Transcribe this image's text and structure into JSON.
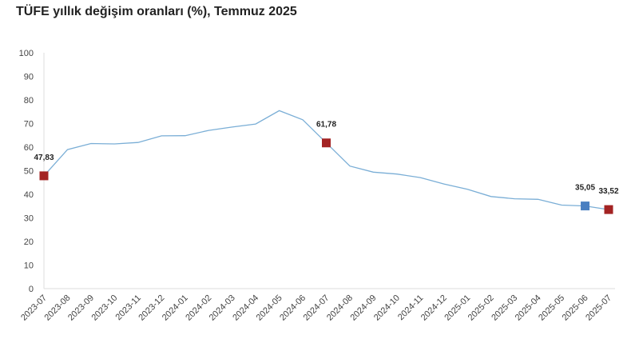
{
  "chart_data": {
    "type": "line",
    "title": "TÜFE yıllık değişim oranları (%), Temmuz 2025",
    "xlabel": "",
    "ylabel": "",
    "ylim": [
      0,
      100
    ],
    "yticks": [
      0,
      10,
      20,
      30,
      40,
      50,
      60,
      70,
      80,
      90,
      100
    ],
    "grid": false,
    "categories": [
      "2023-07",
      "2023-08",
      "2023-09",
      "2023-10",
      "2023-11",
      "2023-12",
      "2024-01",
      "2024-02",
      "2024-03",
      "2024-04",
      "2024-05",
      "2024-06",
      "2024-07",
      "2024-08",
      "2024-09",
      "2024-10",
      "2024-11",
      "2024-12",
      "2025-01",
      "2025-02",
      "2025-03",
      "2025-04",
      "2025-05",
      "2025-06",
      "2025-07"
    ],
    "series": [
      {
        "values": [
          47.83,
          58.94,
          61.53,
          61.36,
          61.98,
          64.77,
          64.86,
          67.07,
          68.5,
          69.8,
          75.45,
          71.6,
          61.78,
          51.97,
          49.38,
          48.58,
          47.09,
          44.38,
          42.12,
          39.05,
          38.1,
          37.86,
          35.41,
          35.05,
          33.52
        ],
        "color": "#7aaed6"
      }
    ],
    "highlights": [
      {
        "index": 0,
        "label": "47,83",
        "color": "#a32323"
      },
      {
        "index": 12,
        "label": "61,78",
        "color": "#a32323"
      },
      {
        "index": 23,
        "label": "35,05",
        "color": "#4a7fc1"
      },
      {
        "index": 24,
        "label": "33,52",
        "color": "#a32323"
      }
    ]
  }
}
